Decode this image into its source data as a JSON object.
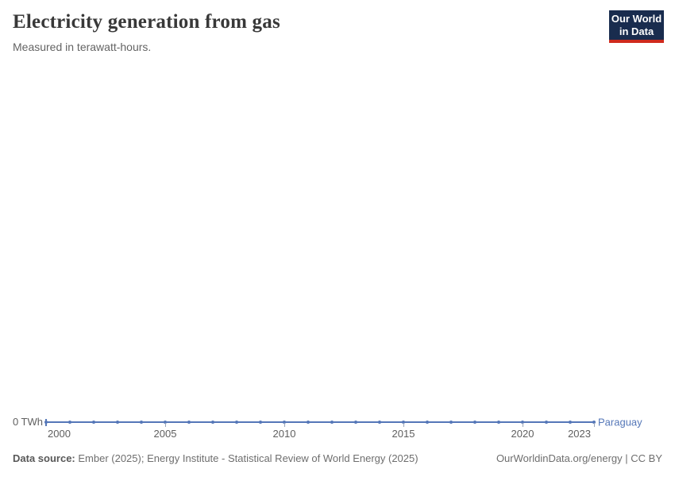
{
  "header": {
    "title": "Electricity generation from gas",
    "subtitle": "Measured in terawatt-hours."
  },
  "logo": {
    "line1": "Our World",
    "line2": "in Data",
    "bg_color": "#192c4e",
    "stripe_color": "#cf2a1d"
  },
  "chart_data": {
    "type": "line",
    "title": "Electricity generation from gas",
    "subtitle": "Measured in terawatt-hours.",
    "unit": "TWh",
    "xlim": [
      2000,
      2023
    ],
    "x_ticks": [
      2000,
      2005,
      2010,
      2015,
      2020,
      2023
    ],
    "y_ticks": [
      "0 TWh"
    ],
    "grid": false,
    "legend_position": "end-of-line-label",
    "series": [
      {
        "name": "Paraguay",
        "color": "#5577b8",
        "x": [
          2000,
          2001,
          2002,
          2003,
          2004,
          2005,
          2006,
          2007,
          2008,
          2009,
          2010,
          2011,
          2012,
          2013,
          2014,
          2015,
          2016,
          2017,
          2018,
          2019,
          2020,
          2021,
          2022,
          2023
        ],
        "values": [
          0,
          0,
          0,
          0,
          0,
          0,
          0,
          0,
          0,
          0,
          0,
          0,
          0,
          0,
          0,
          0,
          0,
          0,
          0,
          0,
          0,
          0,
          0,
          0
        ]
      }
    ]
  },
  "footer": {
    "source_label": "Data source:",
    "source_text": " Ember (2025); Energy Institute - Statistical Review of World Energy (2025)",
    "right_text": "OurWorldinData.org/energy | CC BY"
  }
}
